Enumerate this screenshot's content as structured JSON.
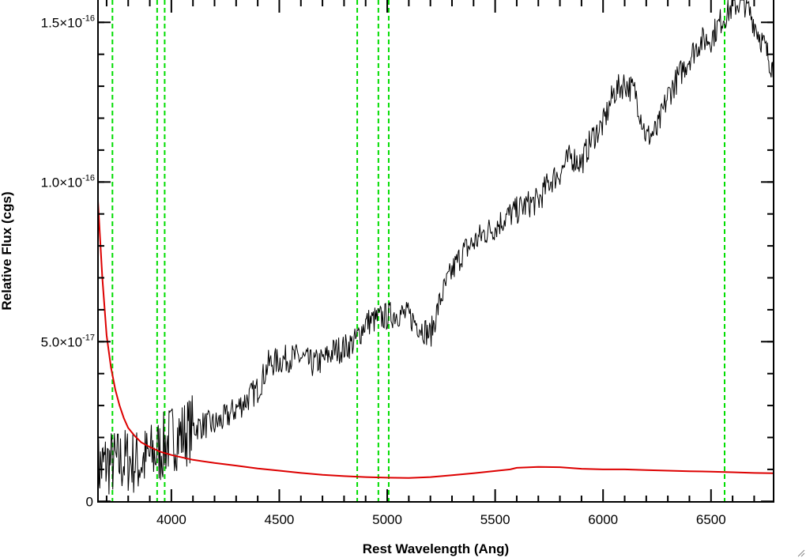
{
  "chart_data": {
    "type": "line",
    "xlabel": "Rest Wavelength (Ang)",
    "ylabel": "Relative Flux (cgs)",
    "xlim": [
      3660,
      6790
    ],
    "ylim": [
      -1.7e-19,
      1.5e-16
    ],
    "grid": false,
    "x_ticks": [
      4000,
      4500,
      5000,
      5500,
      6000,
      6500
    ],
    "x_tick_labels": [
      "4000",
      "4500",
      "5000",
      "5500",
      "6000",
      "6500"
    ],
    "y_ticks": [
      0,
      5e-17,
      1e-16,
      1.5e-16
    ],
    "y_tick_labels": [
      {
        "mantissa": "0",
        "exponent": ""
      },
      {
        "mantissa": "5.0×10",
        "exponent": "-17"
      },
      {
        "mantissa": "1.0×10",
        "exponent": "-16"
      },
      {
        "mantissa": "1.5×10",
        "exponent": "-16"
      }
    ],
    "reference_lines": {
      "color": "#00dd00",
      "style": "dashed",
      "x": [
        3727,
        3934,
        3969,
        4861,
        4959,
        5007,
        6563
      ]
    },
    "series": [
      {
        "color": "#000000",
        "x": [
          3660,
          3700,
          3750,
          3800,
          3850,
          3900,
          3950,
          4000,
          4050,
          4100,
          4150,
          4200,
          4250,
          4300,
          4350,
          4400,
          4450,
          4500,
          4550,
          4600,
          4650,
          4700,
          4750,
          4800,
          4850,
          4900,
          4950,
          5000,
          5050,
          5100,
          5150,
          5200,
          5250,
          5300,
          5350,
          5400,
          5450,
          5500,
          5550,
          5600,
          5650,
          5700,
          5750,
          5800,
          5850,
          5900,
          5950,
          6000,
          6050,
          6100,
          6150,
          6200,
          6250,
          6300,
          6350,
          6400,
          6450,
          6500,
          6550,
          6600,
          6650,
          6700,
          6750,
          6790
        ],
        "y": [
          1e-17,
          1.2e-17,
          1.2e-17,
          1.3e-17,
          1.2e-17,
          1.4e-17,
          1.6e-17,
          2e-17,
          2.1e-17,
          2.3e-17,
          2.4e-17,
          2.4e-17,
          2.6e-17,
          2.9e-17,
          3.2e-17,
          3.5e-17,
          4.3e-17,
          4.4e-17,
          4.5e-17,
          4.5e-17,
          4.3e-17,
          4.4e-17,
          4.7e-17,
          4.8e-17,
          5e-17,
          5.6e-17,
          5.7e-17,
          5.8e-17,
          5.9e-17,
          5.8e-17,
          5.5e-17,
          5.2e-17,
          6.4e-17,
          7.2e-17,
          7.8e-17,
          8.1e-17,
          8.4e-17,
          8.6e-17,
          8.9e-17,
          9.1e-17,
          9.3e-17,
          9.4e-17,
          1e-16,
          1.03e-16,
          1.08e-16,
          1.06e-16,
          1.14e-16,
          1.18e-16,
          1.28e-16,
          1.31e-16,
          1.28e-16,
          1.14e-16,
          1.16e-16,
          1.27e-16,
          1.33e-16,
          1.39e-16,
          1.44e-16,
          1.45e-16,
          1.51e-16,
          1.55e-16,
          1.57e-16,
          1.5e-16,
          1.42e-16,
          1.35e-16
        ]
      },
      {
        "color": "#dd0000",
        "x": [
          3660,
          3680,
          3700,
          3720,
          3740,
          3760,
          3780,
          3800,
          3830,
          3860,
          3900,
          3950,
          4000,
          4100,
          4200,
          4300,
          4400,
          4500,
          4600,
          4700,
          4800,
          4900,
          5000,
          5100,
          5200,
          5300,
          5400,
          5500,
          5570,
          5600,
          5700,
          5800,
          5900,
          6000,
          6100,
          6200,
          6300,
          6400,
          6500,
          6600,
          6700,
          6790
        ],
        "y": [
          9.4e-17,
          7e-17,
          5.2e-17,
          4.2e-17,
          3.5e-17,
          3e-17,
          2.6e-17,
          2.3e-17,
          2.05e-17,
          1.85e-17,
          1.7e-17,
          1.55e-17,
          1.45e-17,
          1.3e-17,
          1.2e-17,
          1.12e-17,
          1.03e-17,
          9.6e-18,
          8.9e-18,
          8.3e-18,
          7.9e-18,
          7.6e-18,
          7.4e-18,
          7.3e-18,
          7.6e-18,
          8.2e-18,
          8.8e-18,
          9.5e-18,
          1e-17,
          1.05e-17,
          1.08e-17,
          1.07e-17,
          1.02e-17,
          1e-17,
          1e-17,
          9.8e-18,
          9.6e-18,
          9.4e-18,
          9.3e-18,
          9.1e-18,
          8.9e-18,
          8.8e-18
        ]
      }
    ]
  }
}
